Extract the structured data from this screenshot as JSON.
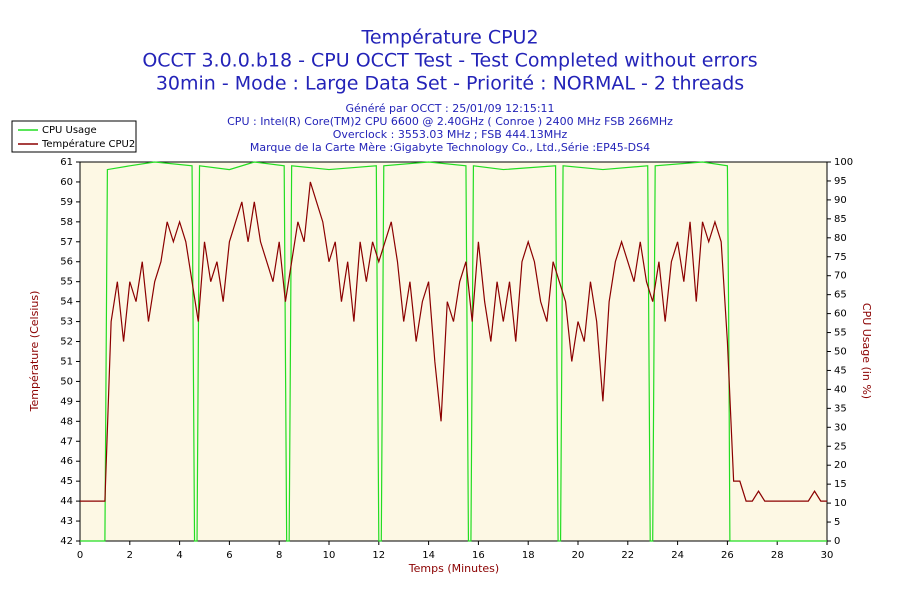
{
  "chart_data": {
    "type": "line",
    "title": "Température CPU2",
    "title_lines": [
      "OCCT 3.0.0.b18 - CPU OCCT Test - Test Completed without errors",
      "30min - Mode : Large Data Set - Priorité : NORMAL - 2 threads"
    ],
    "subtitle_lines": [
      "Généré par OCCT : 25/01/09 12:15:11",
      "CPU : Intel(R) Core(TM)2 CPU 6600 @ 2.40GHz ( Conroe ) 2400 MHz FSB 266MHz",
      "Overclock : 3553.03 MHz ; FSB 444.13MHz",
      "Marque de la Carte Mère :Gigabyte Technology Co., Ltd.,Série :EP45-DS4"
    ],
    "xlabel": "Temps (Minutes)",
    "ylabel": "Température (Celsius)",
    "y2label": "CPU Usage (in %)",
    "xlim": [
      0,
      30
    ],
    "xticks": [
      0,
      2,
      4,
      6,
      8,
      10,
      12,
      14,
      16,
      18,
      20,
      22,
      24,
      26,
      28,
      30
    ],
    "ylim": [
      42,
      61
    ],
    "yticks": [
      42,
      43,
      44,
      45,
      46,
      47,
      48,
      49,
      50,
      51,
      52,
      53,
      54,
      55,
      56,
      57,
      58,
      59,
      60,
      61
    ],
    "y2lim": [
      0,
      100
    ],
    "y2ticks": [
      0,
      5,
      10,
      15,
      20,
      25,
      30,
      35,
      40,
      45,
      50,
      55,
      60,
      65,
      70,
      75,
      80,
      85,
      90,
      95,
      100
    ],
    "grid": false,
    "legend": "top-left",
    "series": [
      {
        "name": "CPU Usage",
        "color": "#22dd22",
        "axis": "y2",
        "x": [
          0,
          1,
          1.1,
          2,
          3,
          4.5,
          4.6,
          4.7,
          4.8,
          6,
          7,
          8.2,
          8.3,
          8.4,
          8.5,
          10,
          11.9,
          12.0,
          12.1,
          12.2,
          14,
          15.5,
          15.6,
          15.7,
          15.8,
          17,
          19.1,
          19.2,
          19.3,
          19.4,
          21,
          22.8,
          22.9,
          23.0,
          23.1,
          25,
          26.0,
          26.05,
          26.1,
          30
        ],
        "values": [
          0,
          0,
          98,
          99,
          100,
          99,
          0,
          0,
          99,
          98,
          100,
          99,
          0,
          0,
          99,
          98,
          99,
          0,
          0,
          99,
          100,
          99,
          0,
          0,
          99,
          98,
          99,
          0,
          0,
          99,
          98,
          99,
          0,
          0,
          99,
          100,
          99,
          60,
          0,
          0
        ]
      },
      {
        "name": "Température CPU2",
        "color": "#8b0000",
        "x": [
          0,
          0.25,
          0.5,
          0.75,
          1,
          1.25,
          1.5,
          1.75,
          2,
          2.25,
          2.5,
          2.75,
          3,
          3.25,
          3.5,
          3.75,
          4,
          4.25,
          4.5,
          4.75,
          5,
          5.25,
          5.5,
          5.75,
          6,
          6.25,
          6.5,
          6.75,
          7,
          7.25,
          7.5,
          7.75,
          8,
          8.25,
          8.5,
          8.75,
          9,
          9.25,
          9.5,
          9.75,
          10,
          10.25,
          10.5,
          10.75,
          11,
          11.25,
          11.5,
          11.75,
          12,
          12.25,
          12.5,
          12.75,
          13,
          13.25,
          13.5,
          13.75,
          14,
          14.25,
          14.5,
          14.75,
          15,
          15.25,
          15.5,
          15.75,
          16,
          16.25,
          16.5,
          16.75,
          17,
          17.25,
          17.5,
          17.75,
          18,
          18.25,
          18.5,
          18.75,
          19,
          19.25,
          19.5,
          19.75,
          20,
          20.25,
          20.5,
          20.75,
          21,
          21.25,
          21.5,
          21.75,
          22,
          22.25,
          22.5,
          22.75,
          23,
          23.25,
          23.5,
          23.75,
          24,
          24.25,
          24.5,
          24.75,
          25,
          25.25,
          25.5,
          25.75,
          26,
          26.25,
          26.5,
          26.75,
          27,
          27.25,
          27.5,
          27.75,
          28,
          28.25,
          28.5,
          28.75,
          29,
          29.25,
          29.5,
          29.75,
          30
        ],
        "values": [
          44,
          44,
          44,
          44,
          44,
          53,
          55,
          52,
          55,
          54,
          56,
          53,
          55,
          56,
          58,
          57,
          58,
          57,
          55,
          53,
          57,
          55,
          56,
          54,
          57,
          58,
          59,
          57,
          59,
          57,
          56,
          55,
          57,
          54,
          56,
          58,
          57,
          60,
          59,
          58,
          56,
          57,
          54,
          56,
          53,
          57,
          55,
          57,
          56,
          57,
          58,
          56,
          53,
          55,
          52,
          54,
          55,
          51,
          48,
          54,
          53,
          55,
          56,
          53,
          57,
          54,
          52,
          55,
          53,
          55,
          52,
          56,
          57,
          56,
          54,
          53,
          56,
          55,
          54,
          51,
          53,
          52,
          55,
          53,
          49,
          54,
          56,
          57,
          56,
          55,
          57,
          55,
          54,
          56,
          53,
          56,
          57,
          55,
          58,
          54,
          58,
          57,
          58,
          57,
          52,
          45,
          45,
          44,
          44,
          44.5,
          44,
          44,
          44,
          44,
          44,
          44,
          44,
          44,
          44.5,
          44,
          44
        ]
      }
    ]
  }
}
